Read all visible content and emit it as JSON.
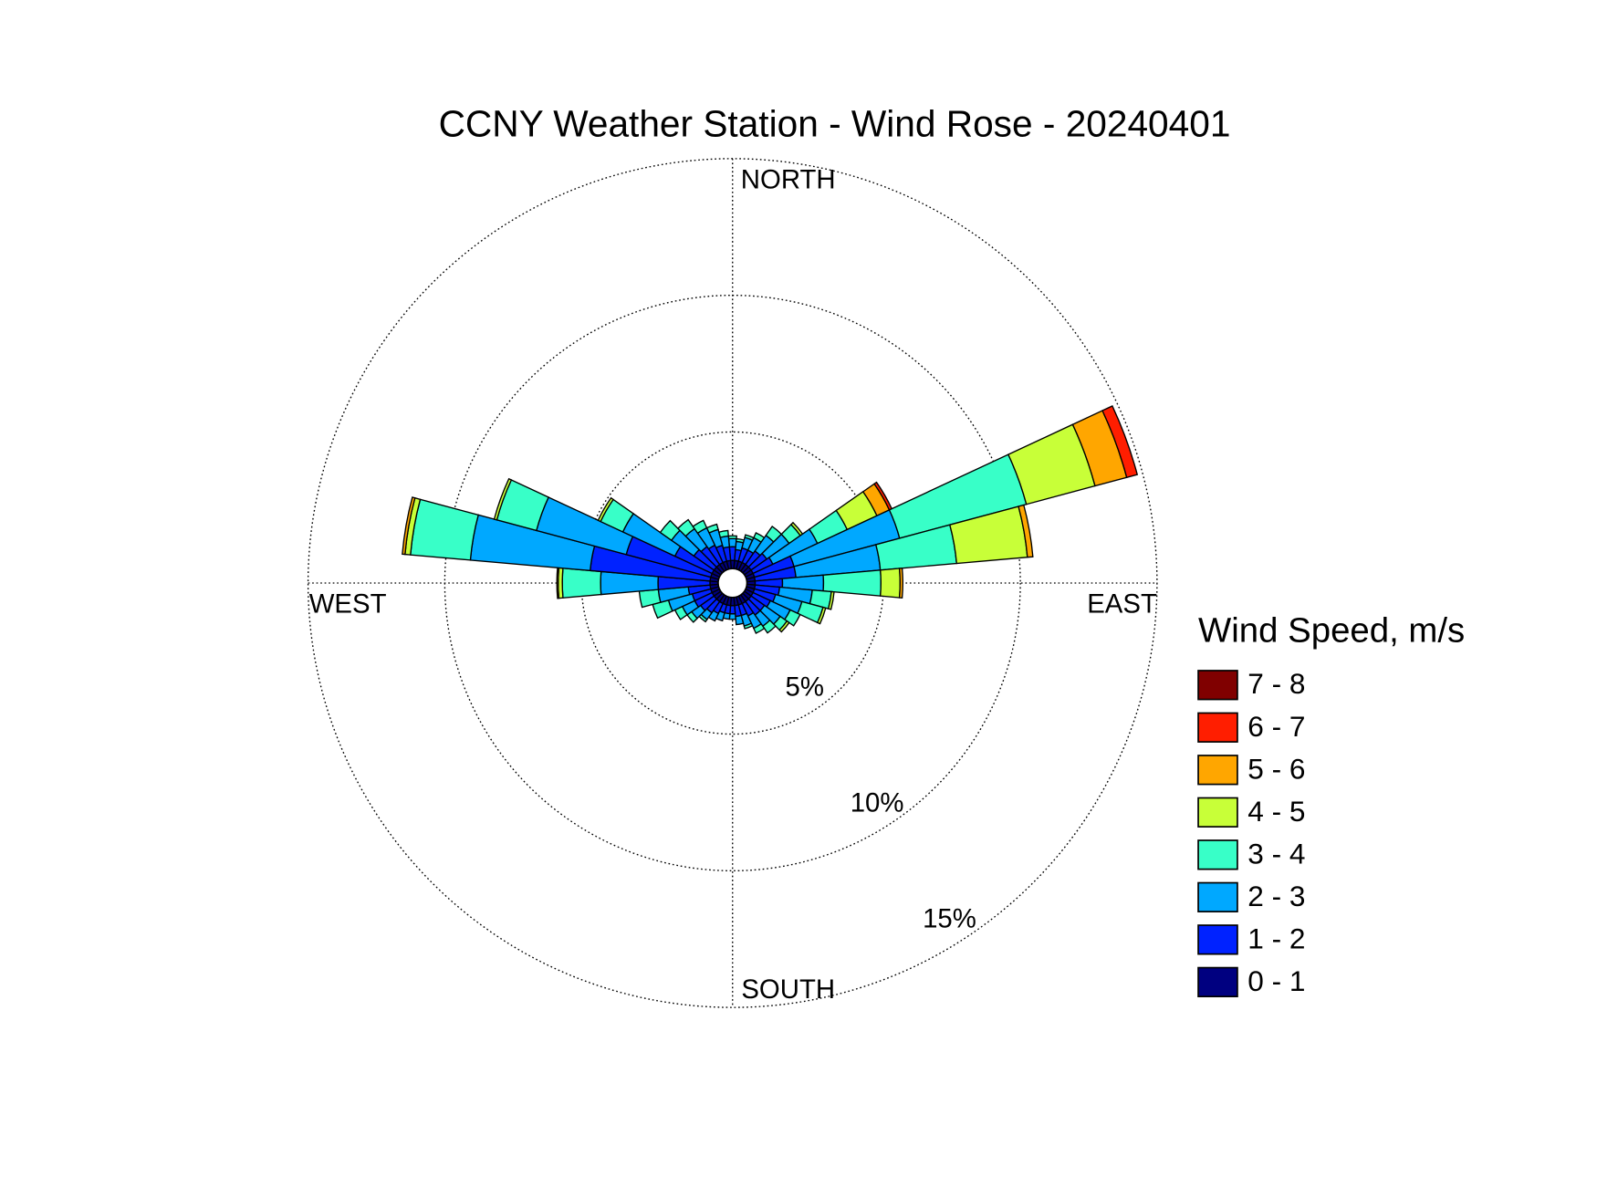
{
  "chart_data": {
    "type": "windrose",
    "title": "CCNY Weather Station - Wind Rose - 20240401",
    "compass_labels": [
      "NORTH",
      "EAST",
      "SOUTH",
      "WEST"
    ],
    "legend_title": "Wind Speed, m/s",
    "directions": [
      0,
      10,
      20,
      30,
      40,
      50,
      60,
      70,
      80,
      90,
      100,
      110,
      120,
      130,
      140,
      150,
      160,
      170,
      180,
      190,
      200,
      210,
      220,
      230,
      240,
      250,
      260,
      270,
      280,
      290,
      300,
      310,
      320,
      330,
      340,
      350
    ],
    "rlim": [
      0,
      15
    ],
    "rticks": [
      {
        "value": 5,
        "label": "5%"
      },
      {
        "value": 10,
        "label": "10%"
      },
      {
        "value": 15,
        "label": "15%"
      }
    ],
    "series": [
      {
        "name": "0 - 1",
        "color": "#000080",
        "values": [
          0.3,
          0.3,
          0.3,
          0.3,
          0.3,
          0.3,
          0.3,
          0.3,
          0.3,
          0.3,
          0.3,
          0.3,
          0.3,
          0.3,
          0.3,
          0.3,
          0.3,
          0.3,
          0.3,
          0.3,
          0.3,
          0.3,
          0.3,
          0.3,
          0.3,
          0.3,
          0.3,
          0.3,
          0.3,
          0.3,
          0.3,
          0.3,
          0.3,
          0.3,
          0.3,
          0.3
        ]
      },
      {
        "name": "1 - 2",
        "color": "#0022ff",
        "values": [
          0.5,
          0.4,
          0.5,
          0.5,
          0.6,
          0.7,
          0.8,
          1.5,
          1.5,
          1.0,
          0.9,
          0.8,
          0.7,
          0.6,
          0.6,
          0.5,
          0.4,
          0.4,
          0.3,
          0.3,
          0.3,
          0.4,
          0.5,
          0.6,
          0.7,
          0.7,
          0.8,
          1.9,
          4.4,
          3.2,
          1.5,
          0.9,
          0.8,
          0.7,
          0.6,
          0.5
        ]
      },
      {
        "name": "2 - 3",
        "color": "#00a8ff",
        "values": [
          0.3,
          0.3,
          0.4,
          0.5,
          0.7,
          1.0,
          1.8,
          4.0,
          3.1,
          1.5,
          1.2,
          1.0,
          0.8,
          0.7,
          0.5,
          0.5,
          0.4,
          0.3,
          0.2,
          0.2,
          0.3,
          0.3,
          0.3,
          0.4,
          0.5,
          0.9,
          1.1,
          2.1,
          4.4,
          3.4,
          2.1,
          1.0,
          0.8,
          0.7,
          0.6,
          0.4
        ]
      },
      {
        "name": "3 - 4",
        "color": "#38ffc8",
        "values": [
          0.1,
          0.1,
          0.1,
          0.2,
          0.4,
          0.5,
          1.2,
          4.8,
          2.8,
          2.1,
          0.7,
          0.8,
          0.4,
          0.3,
          0.3,
          0.2,
          0.1,
          0,
          0,
          0,
          0,
          0,
          0.1,
          0.2,
          0.3,
          0.6,
          0.7,
          1.4,
          2.2,
          1.5,
          0.9,
          0.5,
          0.4,
          0.3,
          0.2,
          0.2
        ]
      },
      {
        "name": "4 - 5",
        "color": "#c8ff38",
        "values": [
          0,
          0,
          0,
          0,
          0,
          0.1,
          1.2,
          2.6,
          2.6,
          0.7,
          0.1,
          0.1,
          0,
          0.1,
          0,
          0,
          0,
          0,
          0,
          0,
          0,
          0,
          0,
          0,
          0,
          0,
          0,
          0.15,
          0.2,
          0.1,
          0.1,
          0,
          0,
          0,
          0,
          0
        ]
      },
      {
        "name": "5 - 6",
        "color": "#ffa600",
        "values": [
          0,
          0,
          0,
          0,
          0,
          0,
          0.5,
          1.2,
          0.2,
          0.1,
          0,
          0,
          0,
          0,
          0,
          0,
          0,
          0,
          0,
          0,
          0,
          0,
          0,
          0,
          0,
          0,
          0,
          0.05,
          0.1,
          0,
          0,
          0,
          0,
          0,
          0,
          0
        ]
      },
      {
        "name": "6 - 7",
        "color": "#ff1e00",
        "values": [
          0,
          0,
          0,
          0,
          0,
          0,
          0.1,
          0.4,
          0,
          0,
          0,
          0,
          0,
          0,
          0,
          0,
          0,
          0,
          0,
          0,
          0,
          0,
          0,
          0,
          0,
          0,
          0,
          0,
          0,
          0,
          0,
          0,
          0,
          0,
          0,
          0
        ]
      },
      {
        "name": "7 - 8",
        "color": "#800000",
        "values": [
          0,
          0,
          0,
          0,
          0,
          0,
          0,
          0,
          0,
          0,
          0,
          0,
          0,
          0,
          0,
          0,
          0,
          0,
          0,
          0,
          0,
          0,
          0,
          0,
          0,
          0,
          0,
          0,
          0,
          0,
          0,
          0,
          0,
          0,
          0,
          0
        ]
      }
    ]
  }
}
